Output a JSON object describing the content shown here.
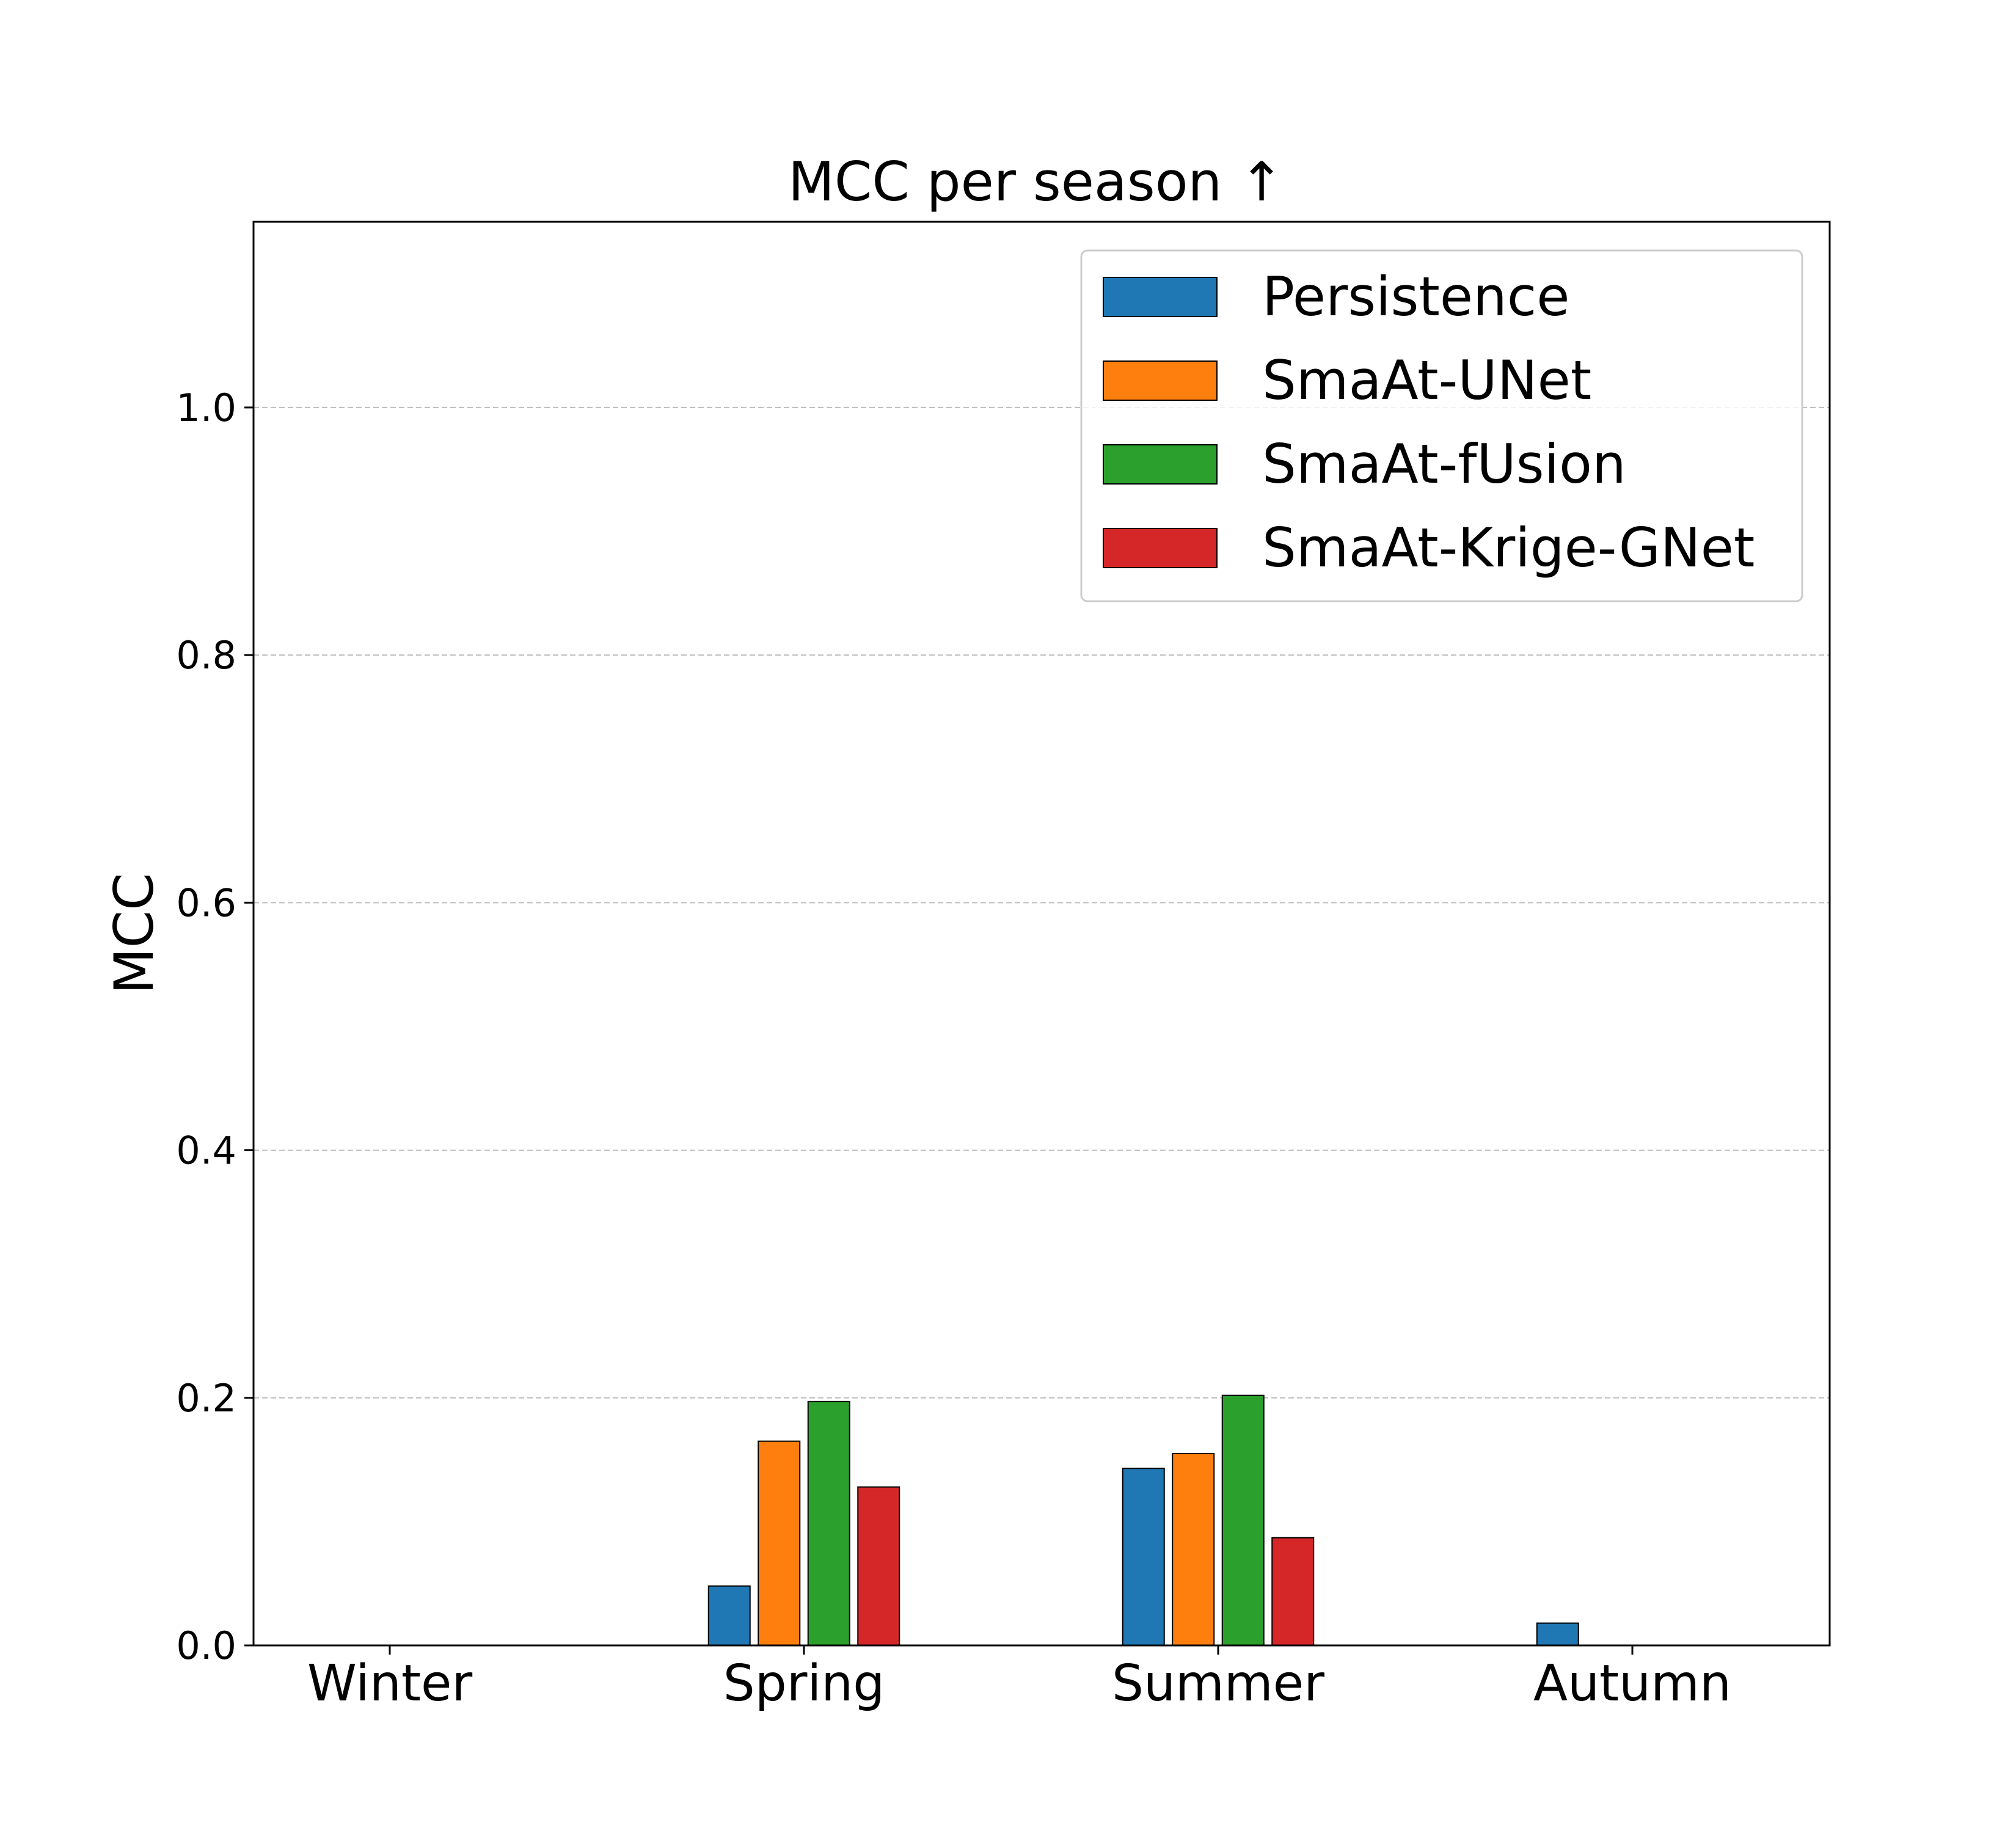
{
  "chart_data": {
    "type": "bar",
    "title": "MCC per season ↑",
    "xlabel": "",
    "ylabel": "MCC",
    "categories": [
      "Winter",
      "Spring",
      "Summer",
      "Autumn"
    ],
    "series": [
      {
        "name": "Persistence",
        "color": "#1f77b4",
        "values": [
          0.0,
          0.048,
          0.143,
          0.018
        ]
      },
      {
        "name": "SmaAt-UNet",
        "color": "#ff7f0e",
        "values": [
          0.0,
          0.165,
          0.155,
          0.0
        ]
      },
      {
        "name": "SmaAt-fUsion",
        "color": "#2ca02c",
        "values": [
          0.0,
          0.197,
          0.202,
          0.0
        ]
      },
      {
        "name": "SmaAt-Krige-GNet",
        "color": "#d62728",
        "values": [
          0.0,
          0.128,
          0.087,
          0.0
        ]
      }
    ],
    "ylim": [
      0,
      1.15
    ],
    "yticks": [
      "0.0",
      "0.2",
      "0.4",
      "0.6",
      "0.8",
      "1.0"
    ],
    "grid": "y, dashed",
    "legend": "top-right"
  }
}
